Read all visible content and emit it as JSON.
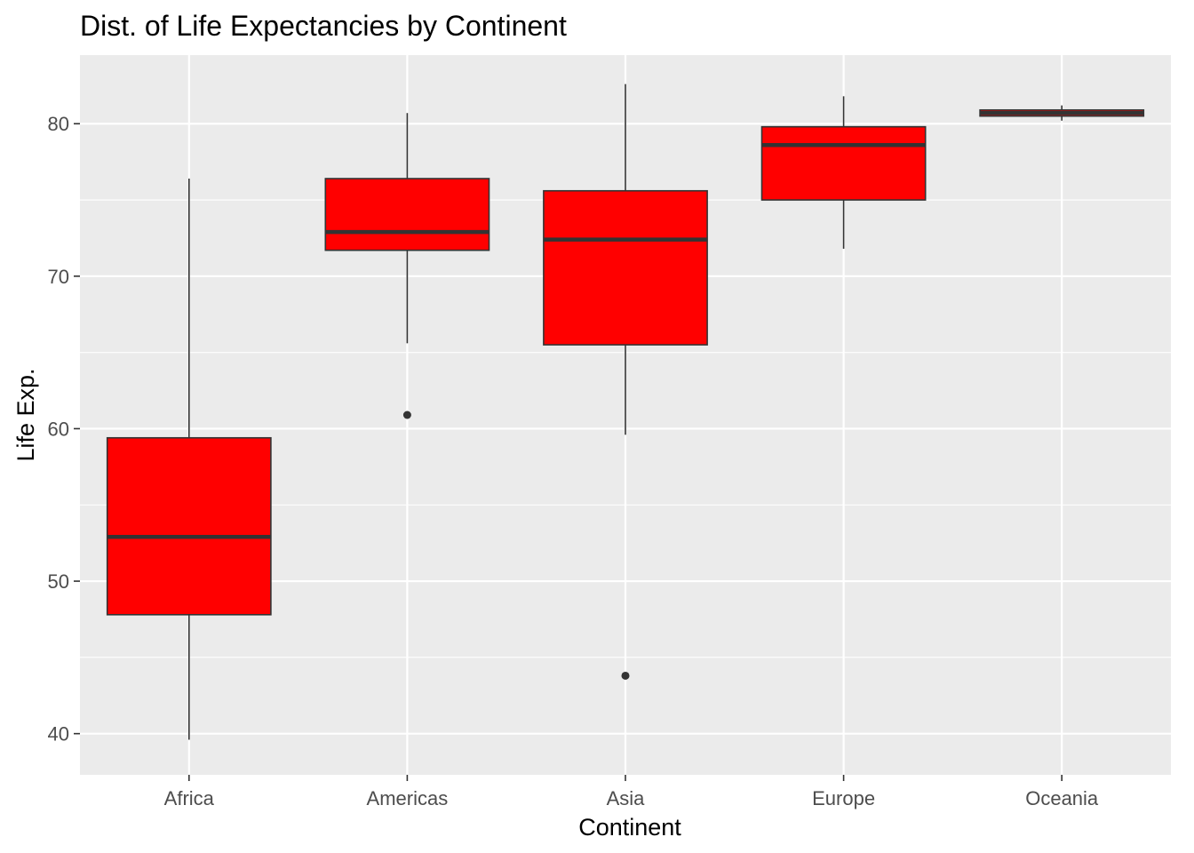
{
  "chart_data": {
    "type": "boxplot",
    "title": "Dist. of Life Expectancies by Continent",
    "xlabel": "Continent",
    "ylabel": "Life Exp.",
    "ylim": [
      37.3,
      84.5
    ],
    "yticks": [
      40,
      50,
      60,
      70,
      80
    ],
    "grid": true,
    "legend": "none",
    "colors": {
      "panel": "#EBEBEB",
      "grid": "#FFFFFF",
      "box_fill": "#FF0000",
      "box_line": "#333333",
      "tick_text": "#4D4D4D"
    },
    "categories": [
      "Africa",
      "Americas",
      "Asia",
      "Europe",
      "Oceania"
    ],
    "boxes": [
      {
        "category": "Africa",
        "whisker_low": 39.6,
        "q1": 47.8,
        "median": 52.9,
        "q3": 59.4,
        "whisker_high": 76.4,
        "outliers": []
      },
      {
        "category": "Americas",
        "whisker_low": 65.6,
        "q1": 71.7,
        "median": 72.9,
        "q3": 76.4,
        "whisker_high": 80.7,
        "outliers": [
          60.9
        ]
      },
      {
        "category": "Asia",
        "whisker_low": 59.6,
        "q1": 65.5,
        "median": 72.4,
        "q3": 75.6,
        "whisker_high": 82.6,
        "outliers": [
          43.8
        ]
      },
      {
        "category": "Europe",
        "whisker_low": 71.8,
        "q1": 75.0,
        "median": 78.6,
        "q3": 79.8,
        "whisker_high": 81.8,
        "outliers": []
      },
      {
        "category": "Oceania",
        "whisker_low": 80.2,
        "q1": 80.5,
        "median": 80.7,
        "q3": 80.9,
        "whisker_high": 81.2,
        "outliers": []
      }
    ]
  }
}
